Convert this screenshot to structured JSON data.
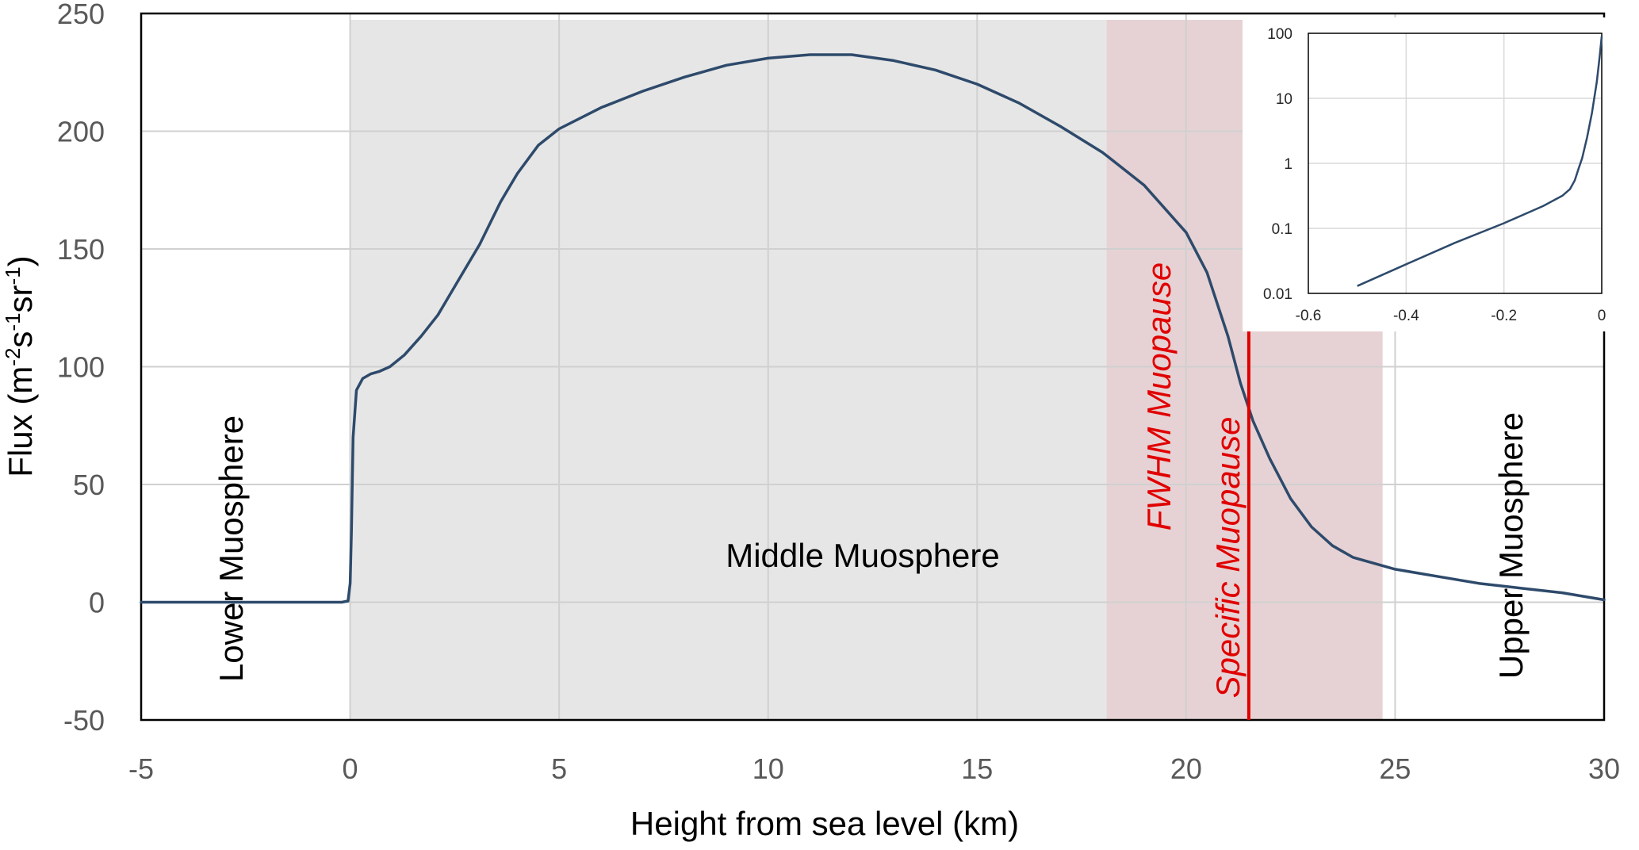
{
  "chart_data": {
    "type": "line",
    "title": "",
    "xlabel": "Height from sea level  (km)",
    "ylabel_parts": [
      "Flux (m",
      "-2",
      "s",
      "-1",
      "sr",
      "-1",
      ")"
    ],
    "xlim": [
      -5,
      30
    ],
    "ylim": [
      -50,
      250
    ],
    "xticks": [
      -5,
      0,
      5,
      10,
      15,
      20,
      25,
      30
    ],
    "yticks": [
      -50,
      0,
      50,
      100,
      150,
      200,
      250
    ],
    "grid": true,
    "colors": {
      "line": "#2e4a6b",
      "middle_region": "#e6e6e6",
      "fwhm_band": "#e6d2d4",
      "specific_line": "#e00000",
      "label_red": "#e00000"
    },
    "regions": [
      {
        "label": "Middle Muosphere",
        "x0": 0,
        "x1": 20.2
      },
      {
        "label": "FWHM Muopause",
        "x0": 18.1,
        "x1": 24.7
      }
    ],
    "region_labels": {
      "lower": "Lower Muosphere",
      "middle": "Middle Muosphere",
      "upper": "Upper Muosphere",
      "fwhm": "FWHM Muopause",
      "specific": "Specific Muopause"
    },
    "specific_muopause_x": 21.5,
    "series": [
      {
        "points": [
          [
            -5,
            0
          ],
          [
            -0.2,
            0
          ],
          [
            -0.05,
            0.5
          ],
          [
            0,
            8
          ],
          [
            0.03,
            30
          ],
          [
            0.07,
            70
          ],
          [
            0.15,
            90
          ],
          [
            0.3,
            95
          ],
          [
            0.5,
            97
          ],
          [
            0.7,
            98
          ],
          [
            0.95,
            100
          ],
          [
            1.3,
            105
          ],
          [
            1.7,
            113
          ],
          [
            2.1,
            122
          ],
          [
            2.6,
            137
          ],
          [
            3.1,
            152
          ],
          [
            3.6,
            170
          ],
          [
            4.0,
            182
          ],
          [
            4.5,
            194
          ],
          [
            5.0,
            201
          ],
          [
            6.0,
            210
          ],
          [
            7.0,
            217
          ],
          [
            8.0,
            223
          ],
          [
            9.0,
            228
          ],
          [
            10.0,
            231
          ],
          [
            11.0,
            232.5
          ],
          [
            12.0,
            232.5
          ],
          [
            13.0,
            230
          ],
          [
            14.0,
            226
          ],
          [
            15.0,
            220
          ],
          [
            16.0,
            212
          ],
          [
            17.0,
            202
          ],
          [
            18.0,
            191
          ],
          [
            19.0,
            177
          ],
          [
            20.0,
            157
          ],
          [
            20.5,
            140
          ],
          [
            21.0,
            113
          ],
          [
            21.3,
            93
          ],
          [
            21.6,
            77
          ],
          [
            22.0,
            61
          ],
          [
            22.5,
            44
          ],
          [
            23.0,
            32
          ],
          [
            23.5,
            24
          ],
          [
            24.0,
            19
          ],
          [
            25.0,
            14
          ],
          [
            26.0,
            11
          ],
          [
            27.0,
            8
          ],
          [
            28.0,
            6
          ],
          [
            29.0,
            4
          ],
          [
            30.0,
            1
          ]
        ]
      }
    ],
    "inset": {
      "type": "line",
      "yscale": "log",
      "xlim": [
        -0.6,
        0
      ],
      "ylim": [
        0.01,
        100
      ],
      "xticks": [
        -0.6,
        -0.4,
        -0.2,
        0
      ],
      "ytick_labels": [
        "0.01",
        "0.1",
        "1",
        "10",
        "100"
      ],
      "yticks": [
        0.01,
        0.1,
        1,
        10,
        100
      ],
      "grid": true,
      "series": [
        {
          "points": [
            [
              -0.5,
              0.013
            ],
            [
              -0.4,
              0.028
            ],
            [
              -0.3,
              0.06
            ],
            [
              -0.2,
              0.12
            ],
            [
              -0.12,
              0.22
            ],
            [
              -0.08,
              0.32
            ],
            [
              -0.065,
              0.4
            ],
            [
              -0.055,
              0.55
            ],
            [
              -0.048,
              0.8
            ],
            [
              -0.04,
              1.2
            ],
            [
              -0.03,
              2.5
            ],
            [
              -0.02,
              6
            ],
            [
              -0.01,
              18
            ],
            [
              -0.004,
              45
            ],
            [
              0,
              90
            ]
          ]
        }
      ]
    }
  }
}
